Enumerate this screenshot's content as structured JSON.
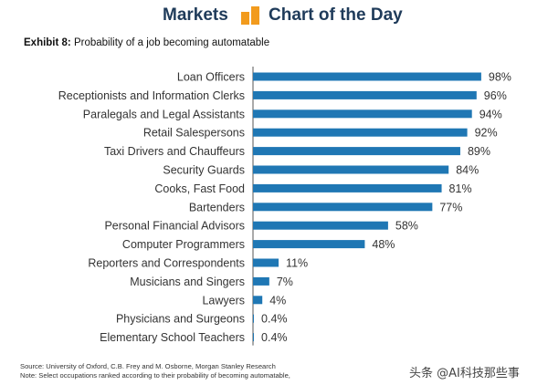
{
  "header": {
    "left": "Markets",
    "right": "Chart of the Day",
    "accent_color": "#f29b1d"
  },
  "exhibit": {
    "label": "Exhibit 8:",
    "title": "Probability of a job becoming automatable"
  },
  "chart_data": {
    "type": "bar",
    "orientation": "horizontal",
    "title": "Probability of a job becoming automatable",
    "categories": [
      "Loan Officers",
      "Receptionists and Information Clerks",
      "Paralegals and Legal Assistants",
      "Retail Salespersons",
      "Taxi Drivers and Chauffeurs",
      "Security Guards",
      "Cooks, Fast Food",
      "Bartenders",
      "Personal Financial Advisors",
      "Computer Programmers",
      "Reporters and Correspondents",
      "Musicians and Singers",
      "Lawyers",
      "Physicians and Surgeons",
      "Elementary School Teachers"
    ],
    "values": [
      98,
      96,
      94,
      92,
      89,
      84,
      81,
      77,
      58,
      48,
      11,
      7,
      4,
      0.4,
      0.4
    ],
    "labels": [
      "98%",
      "96%",
      "94%",
      "92%",
      "89%",
      "84%",
      "81%",
      "77%",
      "58%",
      "48%",
      "11%",
      "7%",
      "4%",
      "0.4%",
      "0.4%"
    ],
    "xlim": [
      0,
      100
    ],
    "bar_color": "#1f77b4",
    "grid": false,
    "legend": "none"
  },
  "notes": {
    "source": "Source: University of Oxford, C.B. Frey and M. Osborne, Morgan Stanley Research",
    "note": "Note: Select occupations ranked according to their probability of becoming automatable,"
  },
  "watermark": "头条 @AI科技那些事"
}
